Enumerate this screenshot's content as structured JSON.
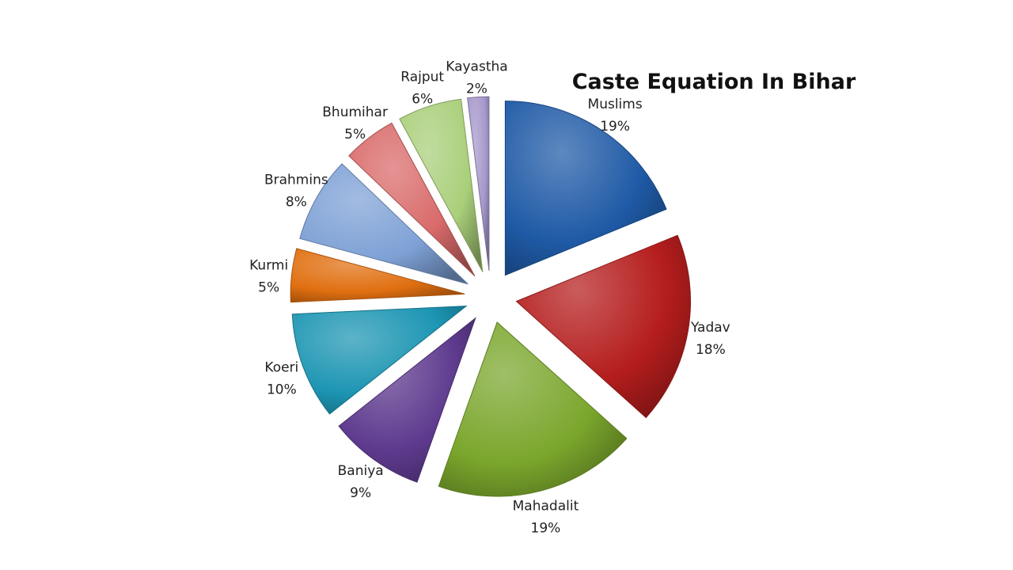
{
  "chart_data": {
    "type": "pie",
    "title": "Caste Equation In Bihar",
    "slices": [
      {
        "label": "Muslims",
        "percent_label": "19%",
        "value": 19,
        "color": "#1f5aa6"
      },
      {
        "label": "Yadav",
        "percent_label": "18%",
        "value": 18,
        "color": "#b51d1d"
      },
      {
        "label": "Mahadalit",
        "percent_label": "19%",
        "value": 19,
        "color": "#7aa62c"
      },
      {
        "label": "Baniya",
        "percent_label": "9%",
        "value": 9,
        "color": "#5e3a8e"
      },
      {
        "label": "Koeri",
        "percent_label": "10%",
        "value": 10,
        "color": "#1c95b3"
      },
      {
        "label": "Kurmi",
        "percent_label": "5%",
        "value": 5,
        "color": "#e06f10"
      },
      {
        "label": "Brahmins",
        "percent_label": "8%",
        "value": 8,
        "color": "#7ea1d6"
      },
      {
        "label": "Bhumihar",
        "percent_label": "5%",
        "value": 5,
        "color": "#d96a6a"
      },
      {
        "label": "Rajput",
        "percent_label": "6%",
        "value": 6,
        "color": "#a9cf7a"
      },
      {
        "label": "Kayastha",
        "percent_label": "2%",
        "value": 2,
        "color": "#a698cc"
      }
    ]
  }
}
